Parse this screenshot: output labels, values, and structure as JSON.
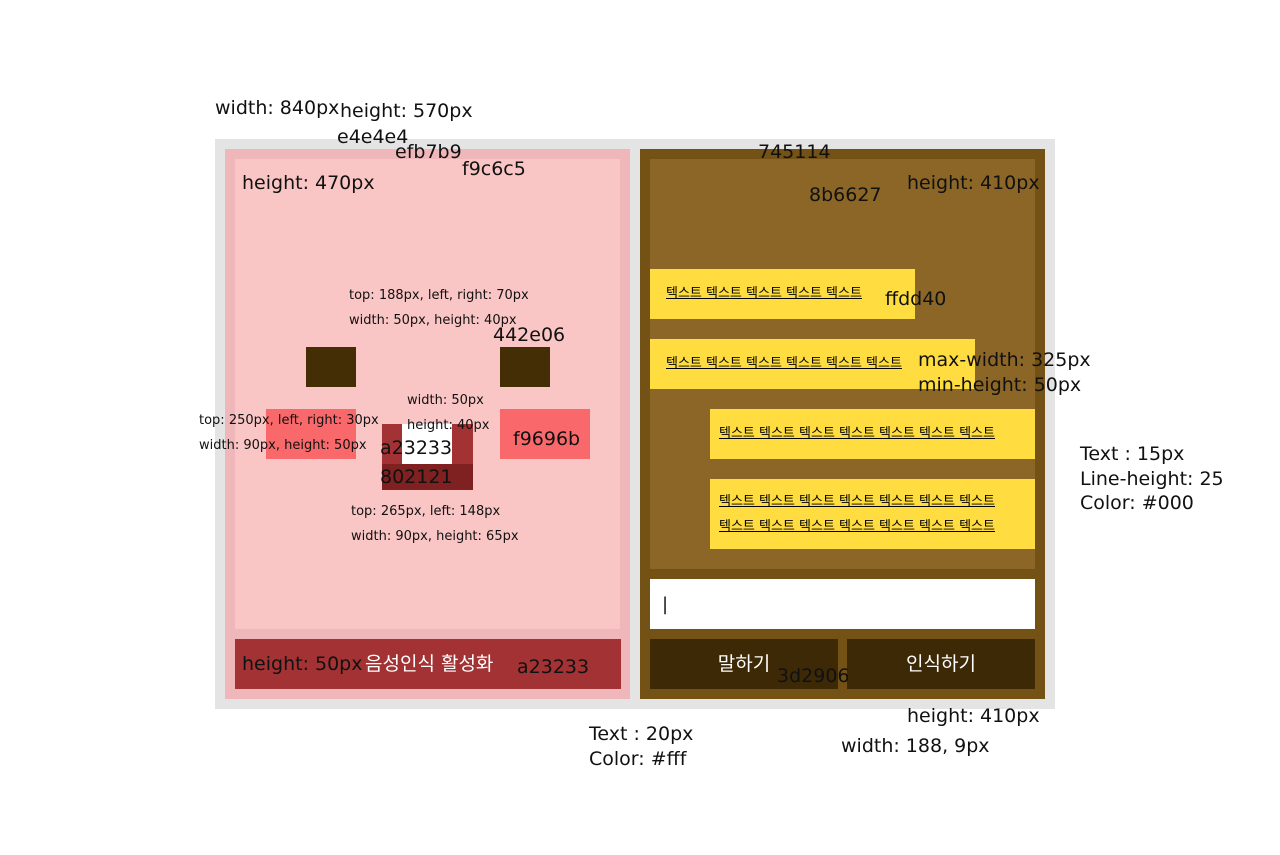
{
  "annotations": {
    "frame_width": "width: 840px",
    "frame_height": "height: 570px",
    "frame_color": "e4e4e4",
    "panel_color": "efb7b9",
    "face_color": "f9c6c5",
    "face_height": "height: 470px",
    "eyes_pos": "top: 188px, left, right: 70px",
    "eyes_size": "width: 50px, height: 40px",
    "eye_color": "442e06",
    "cheeks_pos": "top: 250px, left, right: 30px",
    "cheeks_size": "width: 90px, height: 50px",
    "cheek_color": "f9696b",
    "mouth_gap_width": "width: 50px",
    "mouth_gap_height": "height: 40px",
    "mouth_inner_color": "a23233",
    "mouth_color": "802121",
    "mouth_pos": "top: 265px, left: 148px",
    "mouth_size": "width: 90px, height: 65px",
    "voice_bar_height": "height: 50px",
    "voice_bar_color": "a23233",
    "right_panel_color": "745114",
    "chat_color": "8b6627",
    "chat_height": "height: 410px",
    "bubble_color": "ffdd40",
    "bubble_max_width": "max-width: 325px",
    "bubble_min_height": "min-height: 50px",
    "bubble_text_size": "Text : 15px",
    "bubble_line_height": "Line-height: 25",
    "bubble_text_color": "Color: #000",
    "button_color": "3d2906",
    "button_text_size": "Text : 20px",
    "button_text_color": "Color: #fff",
    "right_bottom_height": "height: 410px",
    "button_width": "width: 188, 9px"
  },
  "voice_bar": {
    "label": "음성인식 활성화"
  },
  "chat": {
    "messages": [
      {
        "text": "텍스트 텍스트 텍스트 텍스트 텍스트"
      },
      {
        "text": "텍스트 텍스트 텍스트 텍스트 텍스트 텍스트"
      },
      {
        "text": "텍스트 텍스트 텍스트 텍스트 텍스트 텍스트 텍스트"
      },
      {
        "line1": "텍스트 텍스트 텍스트 텍스트 텍스트 텍스트 텍스트",
        "line2": "텍스트 텍스트 텍스트 텍스트 텍스트 텍스트 텍스트"
      }
    ],
    "input_value": "|"
  },
  "buttons": {
    "speak": "말하기",
    "recognize": "인식하기"
  },
  "colors": {
    "frame": "#e4e4e4",
    "panel": "#efb7b9",
    "face": "#f9c6c5",
    "eye": "#442e06",
    "cheek": "#f9696b",
    "mouth_inner": "#a23233",
    "mouth": "#802121",
    "right_panel": "#745114",
    "chat": "#8b6627",
    "bubble": "#ffdd40",
    "button": "#3d2906"
  }
}
